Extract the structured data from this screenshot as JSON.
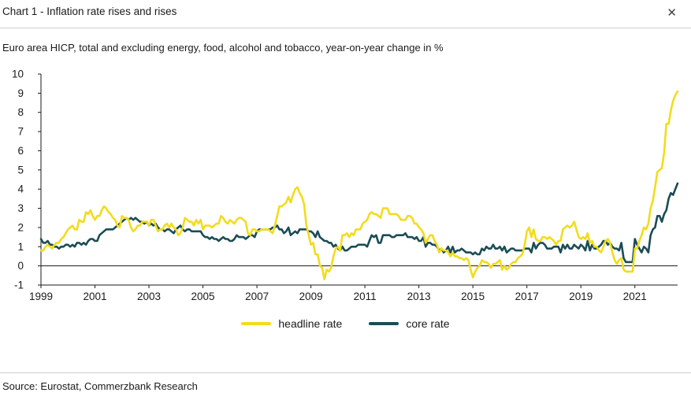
{
  "header": {
    "title": "Chart 1 - Inflation rate rises and rises",
    "close_glyph": "✕"
  },
  "source": "Source: Eurostat, Commerzbank Research",
  "chart_data": {
    "type": "line",
    "title": "Chart 1 - Inflation rate rises and rises",
    "subtitle": "Euro area HICP, total and excluding energy, food, alcohol and tobacco, year-on-year change in %",
    "x_start_year": 1999,
    "x_frequency": "monthly",
    "x_tick_years": [
      1999,
      2001,
      2003,
      2005,
      2007,
      2009,
      2011,
      2013,
      2015,
      2017,
      2019,
      2021
    ],
    "ylim": [
      -1,
      10
    ],
    "y_ticks": [
      -1,
      0,
      1,
      2,
      3,
      4,
      5,
      6,
      7,
      8,
      9,
      10
    ],
    "grid": false,
    "legend_position": "bottom",
    "series": [
      {
        "name": "headline rate",
        "color": "#f2dc1c",
        "values": [
          0.8,
          0.8,
          1.0,
          1.1,
          1.0,
          0.9,
          1.1,
          1.2,
          1.2,
          1.4,
          1.5,
          1.7,
          1.9,
          2.0,
          2.1,
          1.9,
          1.9,
          2.4,
          2.3,
          2.3,
          2.8,
          2.7,
          2.9,
          2.6,
          2.4,
          2.6,
          2.6,
          2.9,
          3.1,
          3.0,
          2.8,
          2.7,
          2.5,
          2.4,
          2.1,
          2.0,
          2.6,
          2.5,
          2.5,
          2.4,
          2.0,
          1.8,
          1.9,
          2.1,
          2.1,
          2.3,
          2.3,
          2.3,
          2.1,
          2.4,
          2.4,
          2.1,
          1.8,
          1.9,
          1.9,
          2.1,
          2.2,
          2.0,
          2.2,
          2.0,
          1.9,
          1.6,
          1.7,
          2.0,
          2.5,
          2.4,
          2.3,
          2.3,
          2.1,
          2.4,
          2.2,
          2.4,
          1.9,
          2.1,
          2.1,
          2.1,
          2.0,
          2.1,
          2.2,
          2.2,
          2.6,
          2.5,
          2.3,
          2.2,
          2.4,
          2.3,
          2.2,
          2.4,
          2.5,
          2.5,
          2.4,
          2.3,
          1.7,
          1.6,
          1.9,
          1.9,
          1.8,
          1.8,
          1.9,
          1.9,
          1.9,
          1.9,
          1.8,
          1.7,
          2.1,
          2.6,
          3.1,
          3.1,
          3.2,
          3.3,
          3.6,
          3.3,
          3.7,
          4.0,
          4.1,
          3.8,
          3.6,
          3.2,
          2.1,
          1.6,
          1.1,
          1.2,
          0.6,
          0.6,
          0.0,
          -0.1,
          -0.7,
          -0.2,
          -0.3,
          -0.1,
          0.5,
          0.9,
          1.0,
          0.8,
          1.6,
          1.6,
          1.7,
          1.5,
          1.7,
          1.6,
          1.9,
          1.9,
          1.9,
          2.2,
          2.3,
          2.4,
          2.7,
          2.8,
          2.7,
          2.7,
          2.6,
          2.5,
          3.0,
          3.0,
          3.0,
          2.7,
          2.7,
          2.7,
          2.7,
          2.6,
          2.4,
          2.4,
          2.4,
          2.6,
          2.6,
          2.5,
          2.2,
          2.2,
          2.0,
          1.9,
          1.7,
          1.2,
          1.4,
          1.6,
          1.6,
          1.3,
          1.1,
          0.7,
          0.9,
          0.8,
          0.8,
          0.7,
          0.5,
          0.7,
          0.5,
          0.5,
          0.4,
          0.4,
          0.3,
          0.4,
          0.3,
          -0.2,
          -0.6,
          -0.3,
          -0.1,
          0.0,
          0.3,
          0.2,
          0.2,
          0.1,
          -0.1,
          0.1,
          0.1,
          0.2,
          0.3,
          -0.2,
          0.0,
          -0.2,
          -0.1,
          0.1,
          0.2,
          0.2,
          0.4,
          0.5,
          0.6,
          1.1,
          1.8,
          2.0,
          1.5,
          1.9,
          1.4,
          1.3,
          1.3,
          1.5,
          1.5,
          1.4,
          1.5,
          1.4,
          1.3,
          1.1,
          1.3,
          1.3,
          1.9,
          2.0,
          2.1,
          2.0,
          2.1,
          2.3,
          1.9,
          1.5,
          1.4,
          1.5,
          1.4,
          1.7,
          1.2,
          1.3,
          1.0,
          1.0,
          0.8,
          0.7,
          1.0,
          1.3,
          1.4,
          1.2,
          0.7,
          0.3,
          0.1,
          0.3,
          0.4,
          -0.2,
          -0.3,
          -0.3,
          -0.3,
          -0.3,
          0.9,
          0.9,
          1.3,
          1.6,
          2.0,
          1.9,
          2.2,
          3.0,
          3.4,
          4.1,
          4.9,
          5.0,
          5.1,
          5.9,
          7.4,
          7.4,
          8.1,
          8.6,
          8.9,
          9.1
        ]
      },
      {
        "name": "core rate",
        "color": "#1b4c55",
        "values": [
          1.4,
          1.2,
          1.2,
          1.3,
          1.1,
          1.1,
          1.0,
          1.0,
          0.9,
          1.0,
          1.0,
          1.1,
          1.1,
          1.0,
          1.1,
          1.0,
          1.2,
          1.2,
          1.1,
          1.2,
          1.1,
          1.3,
          1.4,
          1.4,
          1.3,
          1.3,
          1.6,
          1.7,
          1.8,
          1.9,
          1.9,
          1.9,
          1.9,
          2.0,
          2.1,
          2.2,
          2.3,
          2.4,
          2.5,
          2.4,
          2.5,
          2.4,
          2.5,
          2.4,
          2.3,
          2.3,
          2.2,
          2.3,
          2.1,
          2.2,
          2.1,
          2.2,
          2.0,
          1.9,
          1.9,
          1.8,
          1.9,
          1.9,
          1.8,
          1.7,
          1.9,
          2.0,
          2.1,
          1.9,
          1.8,
          1.9,
          1.9,
          1.8,
          1.8,
          1.8,
          1.8,
          1.8,
          1.6,
          1.5,
          1.5,
          1.4,
          1.5,
          1.4,
          1.4,
          1.3,
          1.4,
          1.5,
          1.4,
          1.4,
          1.3,
          1.3,
          1.4,
          1.6,
          1.5,
          1.5,
          1.5,
          1.4,
          1.5,
          1.6,
          1.6,
          1.5,
          1.8,
          1.9,
          1.9,
          1.9,
          1.9,
          1.9,
          1.9,
          2.0,
          2.0,
          2.1,
          1.9,
          1.9,
          1.7,
          1.8,
          2.0,
          1.6,
          1.7,
          1.8,
          1.7,
          1.9,
          1.9,
          1.9,
          1.9,
          1.8,
          1.8,
          1.7,
          1.5,
          1.8,
          1.5,
          1.4,
          1.3,
          1.3,
          1.2,
          1.2,
          1.0,
          1.1,
          0.9,
          0.8,
          1.0,
          0.8,
          0.8,
          0.9,
          1.0,
          1.0,
          1.0,
          1.1,
          1.1,
          1.1,
          1.1,
          1.0,
          1.3,
          1.6,
          1.5,
          1.6,
          1.2,
          1.2,
          1.6,
          1.6,
          1.6,
          1.6,
          1.5,
          1.5,
          1.6,
          1.6,
          1.6,
          1.6,
          1.7,
          1.5,
          1.5,
          1.5,
          1.4,
          1.5,
          1.3,
          1.3,
          1.5,
          1.0,
          1.2,
          1.2,
          1.1,
          1.1,
          1.0,
          0.8,
          0.9,
          0.7,
          0.8,
          1.0,
          0.7,
          1.0,
          0.7,
          0.8,
          0.8,
          0.9,
          0.8,
          0.7,
          0.7,
          0.7,
          0.6,
          0.7,
          0.6,
          0.6,
          0.9,
          0.8,
          1.0,
          0.9,
          0.9,
          1.1,
          0.9,
          0.9,
          1.0,
          0.8,
          1.0,
          0.7,
          0.8,
          0.9,
          0.9,
          0.8,
          0.8,
          0.8,
          0.8,
          0.9,
          0.9,
          0.9,
          0.7,
          1.2,
          0.9,
          1.1,
          1.2,
          1.2,
          1.1,
          0.9,
          0.9,
          0.9,
          1.0,
          1.0,
          1.0,
          0.7,
          1.1,
          0.9,
          1.1,
          0.9,
          0.9,
          1.1,
          1.0,
          0.9,
          1.1,
          1.0,
          0.8,
          1.3,
          0.8,
          1.1,
          0.9,
          0.9,
          1.0,
          1.1,
          1.3,
          1.3,
          1.1,
          1.2,
          1.0,
          0.9,
          0.9,
          0.8,
          1.2,
          0.4,
          0.2,
          0.2,
          0.2,
          0.2,
          1.4,
          1.1,
          0.9,
          0.7,
          1.0,
          0.9,
          0.7,
          1.6,
          1.9,
          2.0,
          2.6,
          2.6,
          2.3,
          2.7,
          2.9,
          3.5,
          3.8,
          3.7,
          4.0,
          4.3
        ]
      }
    ]
  }
}
